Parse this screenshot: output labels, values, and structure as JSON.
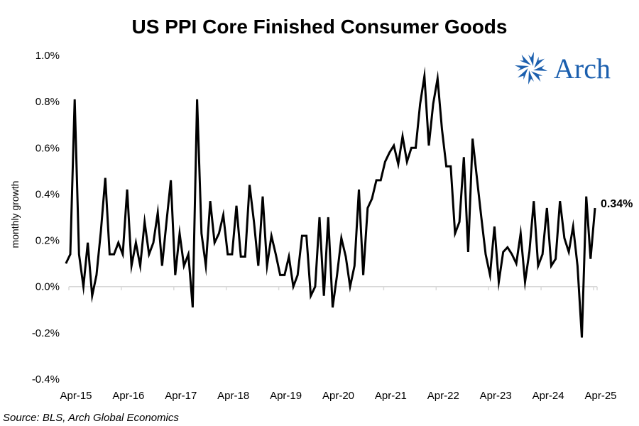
{
  "chart_data": {
    "type": "line",
    "title": "US PPI Core Finished Consumer Goods",
    "xlabel": "",
    "ylabel": "monthly growth",
    "ylim": [
      -0.4,
      1.0
    ],
    "y_ticks": [
      -0.4,
      -0.2,
      0.0,
      0.2,
      0.4,
      0.6,
      0.8,
      1.0
    ],
    "y_tick_labels": [
      "-0.4%",
      "-0.2%",
      "0.0%",
      "0.2%",
      "0.4%",
      "0.6%",
      "0.8%",
      "1.0%"
    ],
    "x_tick_labels": [
      "Apr-15",
      "Apr-16",
      "Apr-17",
      "Apr-18",
      "Apr-19",
      "Apr-20",
      "Apr-21",
      "Apr-22",
      "Apr-23",
      "Apr-24",
      "Apr-25"
    ],
    "x_start": "Mar-15",
    "x_end": "Apr-25",
    "grid": false,
    "legend": "none",
    "series": [
      {
        "name": "US PPI Core Finished Consumer Goods (m/m %)",
        "color": "#000000",
        "values": [
          0.1,
          0.14,
          0.81,
          0.14,
          0.0,
          0.19,
          -0.04,
          0.05,
          0.24,
          0.47,
          0.14,
          0.14,
          0.19,
          0.14,
          0.42,
          0.09,
          0.19,
          0.09,
          0.28,
          0.14,
          0.19,
          0.32,
          0.09,
          0.28,
          0.46,
          0.05,
          0.23,
          0.09,
          0.14,
          -0.09,
          0.81,
          0.23,
          0.09,
          0.37,
          0.19,
          0.23,
          0.31,
          0.14,
          0.14,
          0.35,
          0.13,
          0.13,
          0.44,
          0.28,
          0.09,
          0.39,
          0.09,
          0.22,
          0.14,
          0.05,
          0.05,
          0.13,
          0.0,
          0.05,
          0.22,
          0.22,
          -0.04,
          0.0,
          0.3,
          -0.04,
          0.3,
          -0.09,
          0.05,
          0.21,
          0.13,
          0.0,
          0.09,
          0.42,
          0.05,
          0.34,
          0.38,
          0.46,
          0.46,
          0.54,
          0.58,
          0.61,
          0.53,
          0.65,
          0.54,
          0.6,
          0.6,
          0.79,
          0.91,
          0.61,
          0.79,
          0.9,
          0.68,
          0.52,
          0.52,
          0.23,
          0.28,
          0.56,
          0.15,
          0.64,
          0.47,
          0.3,
          0.14,
          0.05,
          0.26,
          0.02,
          0.15,
          0.17,
          0.14,
          0.1,
          0.23,
          0.02,
          0.15,
          0.37,
          0.09,
          0.14,
          0.34,
          0.09,
          0.12,
          0.37,
          0.21,
          0.15,
          0.26,
          0.09,
          -0.22,
          0.39,
          0.12,
          0.34
        ]
      }
    ],
    "annotations": [
      {
        "text": "0.34%",
        "at": "Apr-25",
        "value": 0.34
      }
    ]
  },
  "source": "Source: BLS, Arch Global Economics",
  "logo": {
    "text": "Arch",
    "icon": "arch-star-icon",
    "color": "#1b5fae"
  },
  "colors": {
    "line": "#000000",
    "axis": "#d9d9d9",
    "text": "#000000"
  }
}
